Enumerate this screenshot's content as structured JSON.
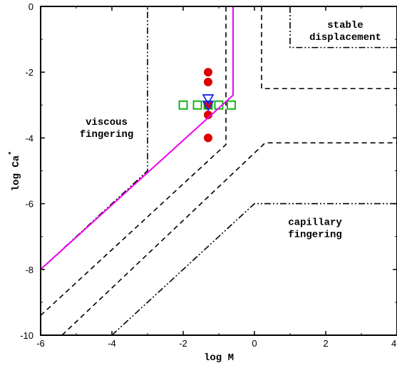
{
  "chart_data": {
    "type": "scatter",
    "title": "",
    "xlabel": "log M",
    "ylabel": "log Ca",
    "ylabel_superscript": "*",
    "xlim": [
      -6,
      4
    ],
    "ylim": [
      -10,
      0
    ],
    "x_ticks": [
      -6,
      -4,
      -2,
      0,
      2,
      4
    ],
    "y_ticks": [
      0,
      -2,
      -4,
      -6,
      -8,
      -10
    ],
    "x_tick_labels": [
      "-6",
      "-4",
      "-2",
      "0",
      "2",
      "4"
    ],
    "y_tick_labels": [
      "0",
      "-2",
      "-4",
      "-6",
      "-8",
      "-10"
    ],
    "grid": false,
    "region_labels": [
      {
        "lines": [
          "viscous",
          "fingering"
        ],
        "x": -4.15,
        "y": -3.6
      },
      {
        "lines": [
          "stable",
          "displacement"
        ],
        "x": 2.55,
        "y": -0.65
      },
      {
        "lines": [
          "capillary",
          "fingering"
        ],
        "x": 1.7,
        "y": -6.65
      }
    ],
    "boundary_lines": [
      {
        "style": "dashdotdot",
        "points": [
          [
            -6,
            -8
          ],
          [
            -3,
            -5
          ],
          [
            -3,
            0
          ]
        ]
      },
      {
        "style": "dashdotdot",
        "points": [
          [
            -4,
            -10
          ],
          [
            0,
            -6
          ],
          [
            4,
            -6
          ]
        ]
      },
      {
        "style": "dashdotdot",
        "points": [
          [
            1,
            0
          ],
          [
            1,
            -1.25
          ],
          [
            4,
            -1.25
          ]
        ]
      },
      {
        "style": "dashed",
        "points": [
          [
            -6,
            -9.4
          ],
          [
            -0.8,
            -4.2
          ],
          [
            -0.8,
            0
          ]
        ]
      },
      {
        "style": "dashed",
        "points": [
          [
            -5.4,
            -10
          ],
          [
            0.3,
            -4.15
          ],
          [
            4,
            -4.15
          ]
        ]
      },
      {
        "style": "dashed",
        "points": [
          [
            0.2,
            0
          ],
          [
            0.2,
            -2.5
          ],
          [
            4,
            -2.5
          ]
        ]
      }
    ],
    "series": [
      {
        "marker": "circle",
        "color": "#dd0000",
        "x": [
          -1.3,
          -1.3,
          -1.3,
          -1.3,
          -1.3
        ],
        "y": [
          -2.0,
          -2.3,
          -3.0,
          -3.3,
          -4.0
        ]
      },
      {
        "marker": "square",
        "color": "#00b000",
        "x": [
          -2.0,
          -1.6,
          -1.3,
          -1.0,
          -0.65
        ],
        "y": [
          -3.0,
          -3.0,
          -3.0,
          -3.0,
          -3.0
        ]
      },
      {
        "marker": "triangle-down",
        "color": "#2222ee",
        "x": [
          -1.3,
          -1.3
        ],
        "y": [
          -2.8,
          -3.0
        ]
      },
      {
        "type": "line",
        "color": "#ee00ee",
        "x": [
          -6,
          -0.6,
          -0.6,
          -0.7
        ],
        "y": [
          -8,
          -2.7,
          0,
          0
        ]
      }
    ]
  }
}
